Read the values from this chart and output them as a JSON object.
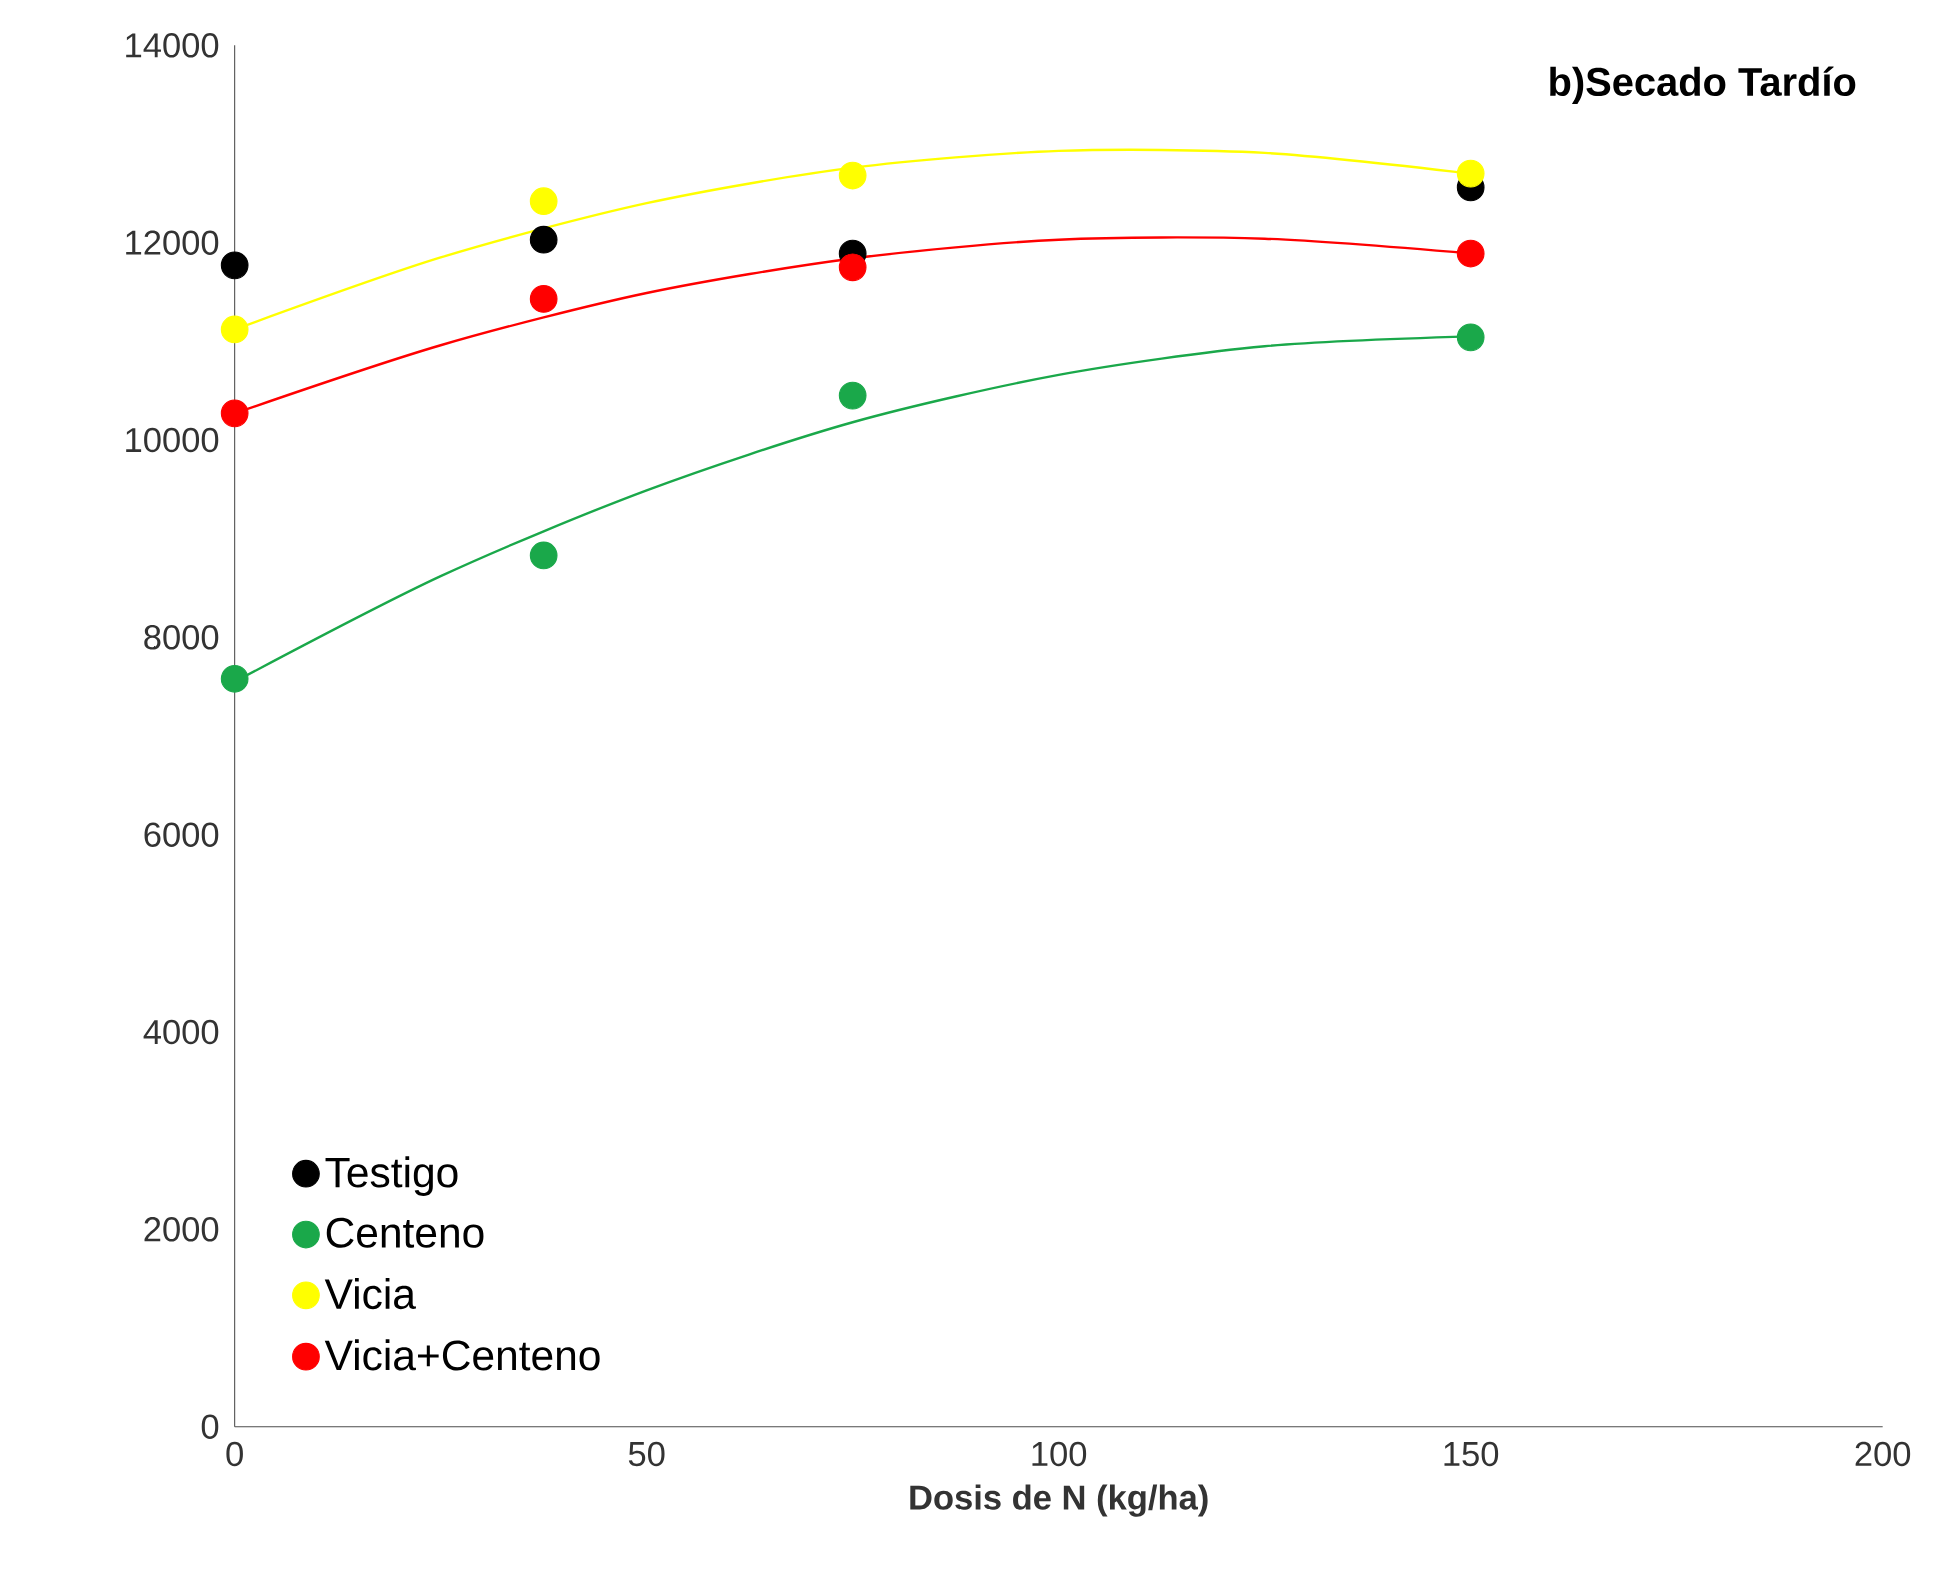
{
  "chart_data": {
    "type": "scatter",
    "title": "b)Secado Tardío",
    "xlabel": "Dosis  de N (kg/ha)",
    "xlim": [
      0,
      200
    ],
    "ylim": [
      0,
      14000
    ],
    "xticks": [
      0,
      50,
      100,
      150,
      200
    ],
    "yticks": [
      0,
      2000,
      4000,
      6000,
      8000,
      10000,
      12000,
      14000
    ],
    "grid": false,
    "legend": "bottom left",
    "marker": "circle",
    "x": [
      0,
      37.5,
      75,
      150
    ],
    "series": [
      {
        "name": "Testigo",
        "color": "#000000",
        "values": [
          11770,
          12030,
          11890,
          12560
        ]
      },
      {
        "name": "Centeno",
        "color": "#1aa84a",
        "values": [
          7580,
          8830,
          10450,
          11040
        ]
      },
      {
        "name": "Vicia",
        "color": "#ffff00",
        "values": [
          11120,
          12420,
          12680,
          12700
        ]
      },
      {
        "name": "Vicia+Centeno",
        "color": "#ff0000",
        "values": [
          10270,
          11430,
          11750,
          11890
        ]
      },
      {
        "type": "line",
        "marker": "none",
        "color": "#1aa84a",
        "x": [
          0,
          25,
          50,
          75,
          100,
          125,
          150
        ],
        "values": [
          7550,
          8620,
          9490,
          10180,
          10660,
          10950,
          11050
        ]
      },
      {
        "type": "line",
        "marker": "none",
        "color": "#ffff00",
        "x": [
          0,
          25,
          50,
          75,
          100,
          125,
          150
        ],
        "values": [
          11120,
          11850,
          12400,
          12760,
          12930,
          12910,
          12700
        ]
      },
      {
        "type": "line",
        "marker": "none",
        "color": "#ff0000",
        "x": [
          0,
          25,
          50,
          75,
          100,
          125,
          150
        ],
        "values": [
          10270,
          10960,
          11490,
          11840,
          12030,
          12040,
          11890
        ]
      }
    ]
  }
}
